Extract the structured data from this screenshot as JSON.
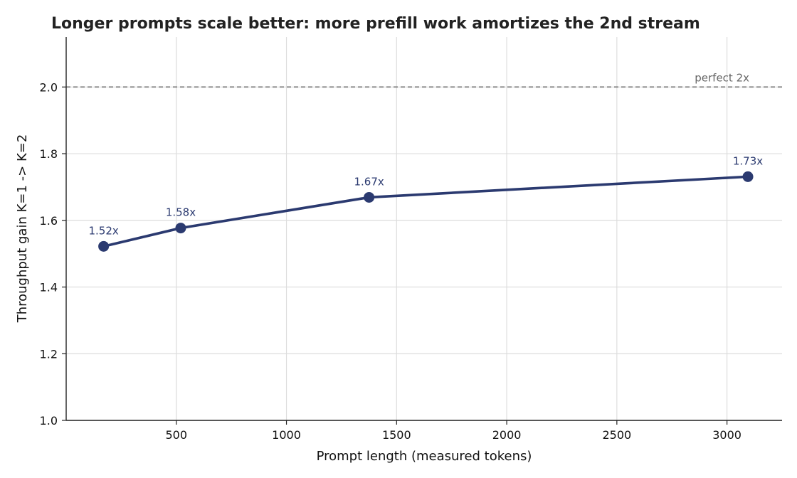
{
  "chart_data": {
    "type": "line",
    "title": "Longer prompts scale better: more prefill work amortizes the 2nd stream",
    "xlabel": "Prompt length (measured tokens)",
    "ylabel": "Throughput gain K=1 -> K=2",
    "xlim": [
      0,
      3250
    ],
    "ylim": [
      1.0,
      2.15
    ],
    "x_ticks": [
      500,
      1000,
      1500,
      2000,
      2500,
      3000
    ],
    "y_ticks": [
      1.0,
      1.2,
      1.4,
      1.6,
      1.8,
      2.0
    ],
    "y_tick_labels": [
      "1.0",
      "1.2",
      "1.4",
      "1.6",
      "1.8",
      "2.0"
    ],
    "grid": true,
    "series": [
      {
        "x": [
          170,
          520,
          1375,
          3095
        ],
        "values": [
          1.522,
          1.577,
          1.669,
          1.731
        ],
        "data_labels": [
          "1.52x",
          "1.58x",
          "1.67x",
          "1.73x"
        ],
        "color": "#2b3a70"
      }
    ],
    "reference_line": {
      "y": 2.0,
      "label": "perfect 2x",
      "color": "#888888",
      "style": "dashed"
    }
  }
}
